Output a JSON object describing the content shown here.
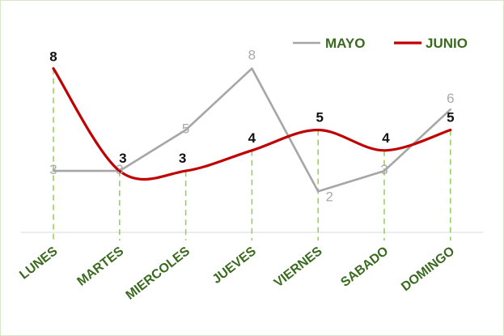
{
  "chart_data": {
    "type": "line",
    "categories": [
      "LUNES",
      "MARTES",
      "MIERCOLES",
      "JUEVES",
      "VIERNES",
      "SABADO",
      "DOMINGO"
    ],
    "series": [
      {
        "name": "MAYO",
        "values": [
          3,
          3,
          5,
          8,
          2,
          3,
          6
        ],
        "color": "#a6a6a6",
        "smooth": false
      },
      {
        "name": "JUNIO",
        "values": [
          8,
          3,
          3,
          4,
          5,
          4,
          5
        ],
        "color": "#c00000",
        "smooth": true
      }
    ],
    "ylim": [
      0,
      9
    ],
    "title": "",
    "xlabel": "",
    "ylabel": "",
    "legend": "top-right",
    "drop_lines": true,
    "drop_line_color": "#92d050",
    "axis_label_color": "#3a6a1e",
    "grid": false
  }
}
